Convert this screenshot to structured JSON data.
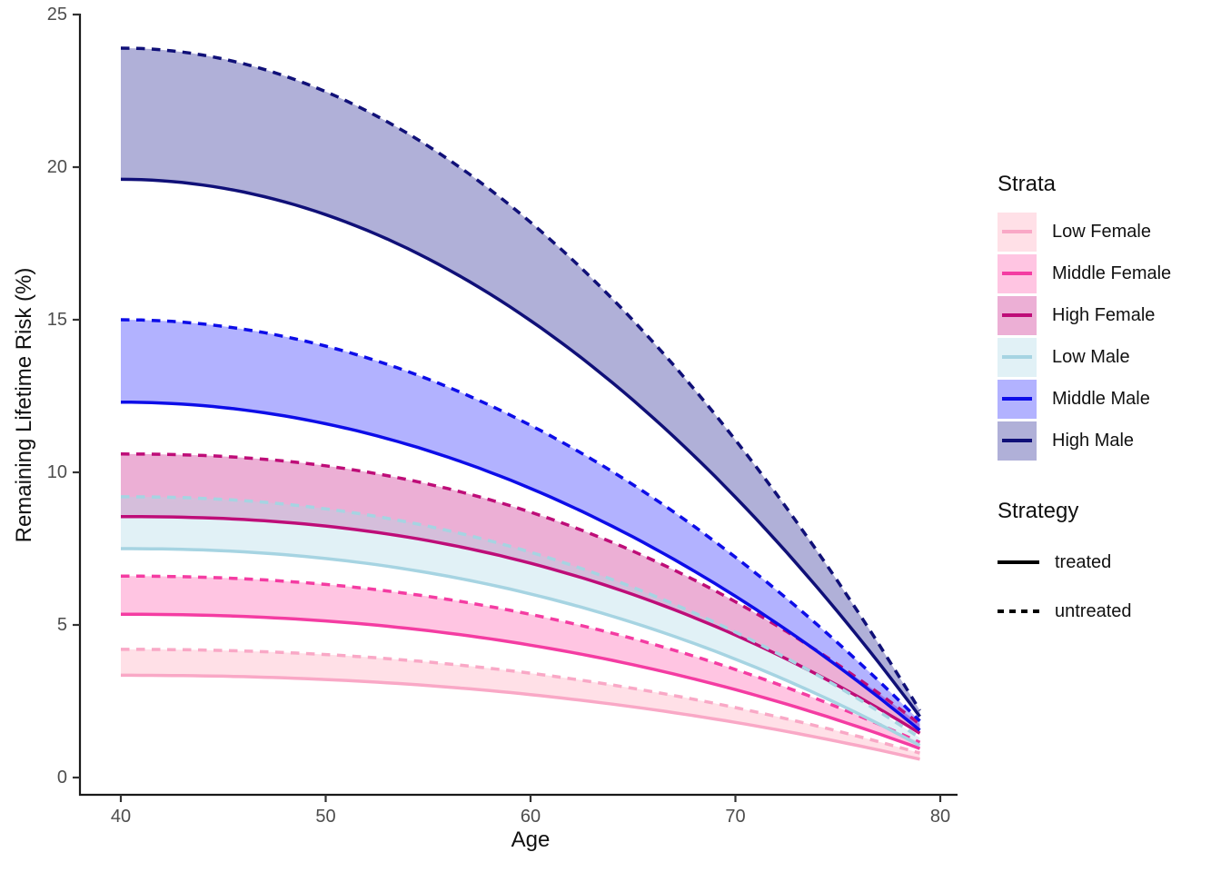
{
  "chart_data": {
    "type": "area",
    "description": "Ribbon chart of remaining lifetime risk vs age; each stratum band is bounded above by the untreated (dashed) curve and below by the treated (solid) curve.",
    "x": {
      "label": "Age",
      "ticks": [
        40,
        50,
        60,
        70,
        80
      ],
      "data_range": [
        40,
        79
      ]
    },
    "y": {
      "label": "Remaining Lifetime Risk (%)",
      "ticks": [
        0,
        5,
        10,
        15,
        20,
        25
      ],
      "range": [
        0,
        25
      ]
    },
    "grid": false,
    "legend_position": "right",
    "sample_ages": [
      40,
      50,
      60,
      70,
      79
    ],
    "series": [
      {
        "name": "Low Female",
        "line_color": "#F9A8C6",
        "fill_color": "rgba(255,182,197,0.42)",
        "curve_exponent": 2.2,
        "untreated": {
          "start": 4.2,
          "end": 0.8,
          "sample_values": [
            4.2,
            4.0,
            3.4,
            2.3,
            0.8
          ]
        },
        "treated": {
          "start": 3.35,
          "end": 0.6,
          "sample_values": [
            3.35,
            3.2,
            2.7,
            1.8,
            0.6
          ]
        }
      },
      {
        "name": "Middle Female",
        "line_color": "#F43CA2",
        "fill_color": "rgba(255,62,160,0.30)",
        "curve_exponent": 2.2,
        "untreated": {
          "start": 6.6,
          "end": 1.15,
          "sample_values": [
            6.6,
            6.3,
            5.3,
            3.5,
            1.15
          ]
        },
        "treated": {
          "start": 5.35,
          "end": 0.95,
          "sample_values": [
            5.35,
            5.1,
            4.3,
            2.9,
            0.95
          ]
        }
      },
      {
        "name": "High Female",
        "line_color": "#BE0D78",
        "fill_color": "rgba(199,21,133,0.34)",
        "curve_exponent": 2.3,
        "untreated": {
          "start": 10.6,
          "end": 1.75,
          "sample_values": [
            10.6,
            10.2,
            8.7,
            5.8,
            1.75
          ]
        },
        "treated": {
          "start": 8.55,
          "end": 1.45,
          "sample_values": [
            8.55,
            8.2,
            7.0,
            4.7,
            1.45
          ]
        }
      },
      {
        "name": "Low Male",
        "line_color": "#A6D4E2",
        "fill_color": "rgba(173,216,230,0.36)",
        "curve_exponent": 2.2,
        "untreated": {
          "start": 9.2,
          "end": 1.3,
          "sample_values": [
            9.2,
            8.8,
            7.4,
            4.8,
            1.3
          ]
        },
        "treated": {
          "start": 7.5,
          "end": 1.05,
          "sample_values": [
            7.5,
            7.2,
            6.0,
            3.9,
            1.05
          ]
        }
      },
      {
        "name": "Middle Male",
        "line_color": "#0D0DE8",
        "fill_color": "rgba(0,0,255,0.30)",
        "curve_exponent": 2.0,
        "untreated": {
          "start": 15.0,
          "end": 1.85,
          "sample_values": [
            15.0,
            14.1,
            11.5,
            7.2,
            1.85
          ]
        },
        "treated": {
          "start": 12.3,
          "end": 1.55,
          "sample_values": [
            12.3,
            11.6,
            9.5,
            5.9,
            1.55
          ]
        }
      },
      {
        "name": "High Male",
        "line_color": "#101078",
        "fill_color": "rgba(0,0,128,0.31)",
        "curve_exponent": 2.0,
        "untreated": {
          "start": 23.9,
          "end": 2.2,
          "sample_values": [
            23.9,
            22.5,
            18.2,
            11.1,
            2.2
          ]
        },
        "treated": {
          "start": 19.6,
          "end": 2.0,
          "sample_values": [
            19.6,
            18.4,
            15.0,
            9.2,
            2.0
          ]
        }
      }
    ]
  },
  "legend": {
    "strata_title": "Strata",
    "strategy_title": "Strategy",
    "strategy": {
      "items": [
        {
          "label": "treated",
          "style": "solid"
        },
        {
          "label": "untreated",
          "style": "dashed"
        }
      ]
    }
  },
  "colors": {
    "background": "#FFFFFF",
    "axis_line": "#1A1A1A",
    "tick_mark": "#333333",
    "tick_text": "#4D4D4D",
    "strategy_key": "#000000"
  }
}
